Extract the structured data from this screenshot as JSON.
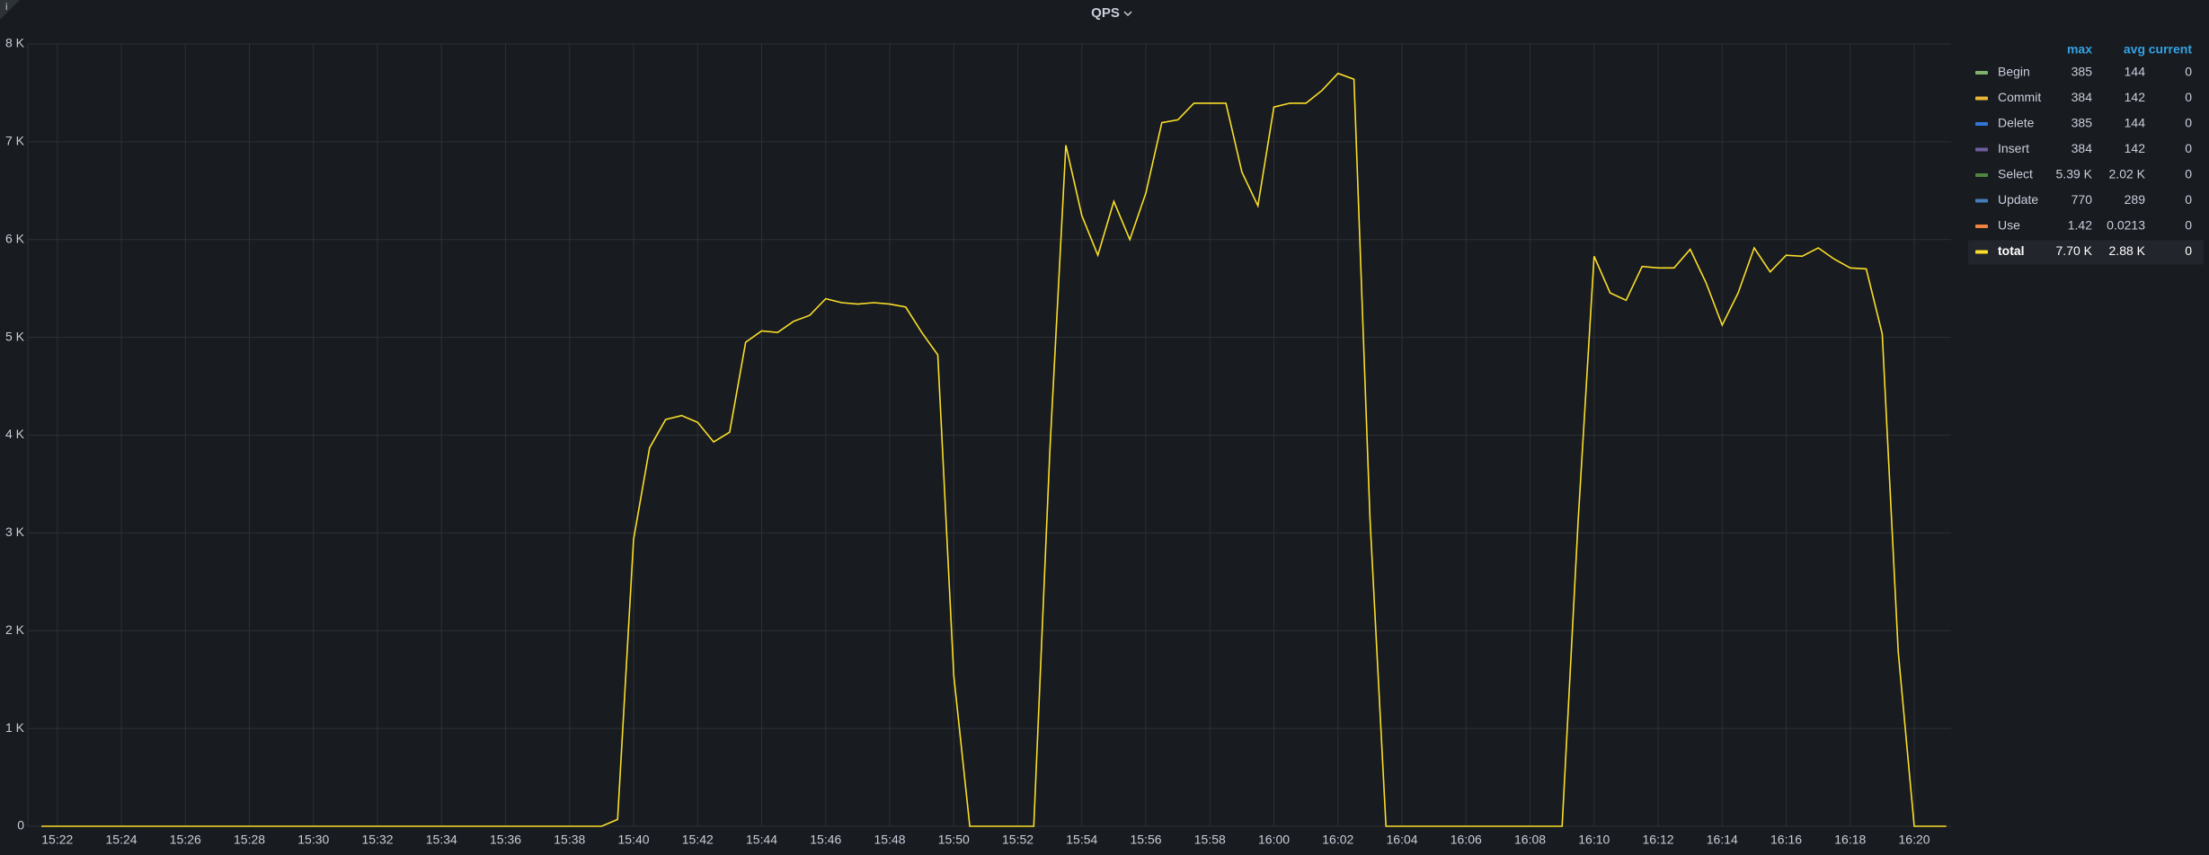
{
  "chart_data": {
    "type": "line",
    "title": "QPS",
    "xlim": [
      921.08,
      981.15
    ],
    "xticks": [
      {
        "value": 922,
        "label": "15:22"
      },
      {
        "value": 924,
        "label": "15:24"
      },
      {
        "value": 926,
        "label": "15:26"
      },
      {
        "value": 928,
        "label": "15:28"
      },
      {
        "value": 930,
        "label": "15:30"
      },
      {
        "value": 932,
        "label": "15:32"
      },
      {
        "value": 934,
        "label": "15:34"
      },
      {
        "value": 936,
        "label": "15:36"
      },
      {
        "value": 938,
        "label": "15:38"
      },
      {
        "value": 940,
        "label": "15:40"
      },
      {
        "value": 942,
        "label": "15:42"
      },
      {
        "value": 944,
        "label": "15:44"
      },
      {
        "value": 946,
        "label": "15:46"
      },
      {
        "value": 948,
        "label": "15:48"
      },
      {
        "value": 950,
        "label": "15:50"
      },
      {
        "value": 952,
        "label": "15:52"
      },
      {
        "value": 954,
        "label": "15:54"
      },
      {
        "value": 956,
        "label": "15:56"
      },
      {
        "value": 958,
        "label": "15:58"
      },
      {
        "value": 960,
        "label": "16:00"
      },
      {
        "value": 962,
        "label": "16:02"
      },
      {
        "value": 964,
        "label": "16:04"
      },
      {
        "value": 966,
        "label": "16:06"
      },
      {
        "value": 968,
        "label": "16:08"
      },
      {
        "value": 970,
        "label": "16:10"
      },
      {
        "value": 972,
        "label": "16:12"
      },
      {
        "value": 974,
        "label": "16:14"
      },
      {
        "value": 976,
        "label": "16:16"
      },
      {
        "value": 978,
        "label": "16:18"
      },
      {
        "value": 980,
        "label": "16:20"
      }
    ],
    "ylim": [
      0,
      8000
    ],
    "yticks": [
      0,
      {
        "value": 1000,
        "label": "1 K"
      },
      {
        "value": 2000,
        "label": "2 K"
      },
      {
        "value": 3000,
        "label": "3 K"
      },
      {
        "value": 4000,
        "label": "4 K"
      },
      {
        "value": 5000,
        "label": "5 K"
      },
      {
        "value": 6000,
        "label": "6 K"
      },
      {
        "value": 7000,
        "label": "7 K"
      },
      {
        "value": 8000,
        "label": "8 K"
      }
    ],
    "grid": true,
    "legend_columns": [
      "max",
      "avg",
      "current"
    ],
    "x": [
      921.5,
      939,
      939.5,
      940,
      940.5,
      941,
      941.5,
      942,
      942.5,
      943,
      943.5,
      944,
      944.5,
      945,
      945.5,
      946,
      946.5,
      947,
      947.5,
      948,
      948.5,
      949,
      949.5,
      950,
      950.5,
      952.5,
      953,
      953.5,
      954,
      954.5,
      955,
      955.5,
      956,
      956.5,
      957,
      957.5,
      958,
      958.5,
      959,
      959.5,
      960,
      960.5,
      961,
      961.5,
      962,
      962.5,
      963,
      963.5,
      969,
      969.5,
      970,
      970.5,
      971,
      971.5,
      972,
      972.5,
      973,
      973.5,
      974,
      974.5,
      975,
      975.5,
      976,
      976.5,
      977,
      977.5,
      978,
      978.5,
      979,
      979.5,
      980,
      981
    ],
    "series": [
      {
        "name": "Begin",
        "color": "#7eb26d",
        "stats": [
          "385",
          "144",
          "0"
        ]
      },
      {
        "name": "Commit",
        "color": "#eab839",
        "stats": [
          "384",
          "142",
          "0"
        ]
      },
      {
        "name": "Delete",
        "color": "#3274d9",
        "stats": [
          "385",
          "144",
          "0"
        ]
      },
      {
        "name": "Insert",
        "color": "#705da0",
        "stats": [
          "384",
          "142",
          "0"
        ]
      },
      {
        "name": "Select",
        "color": "#508642",
        "stats": [
          "5.39 K",
          "2.02 K",
          "0"
        ]
      },
      {
        "name": "Update",
        "color": "#447ebc",
        "stats": [
          "770",
          "289",
          "0"
        ]
      },
      {
        "name": "Use",
        "color": "#ef843c",
        "stats": [
          "1.42",
          "0.0213",
          "0"
        ]
      },
      {
        "name": "total",
        "color": "#fade2a",
        "stats": [
          "7.70 K",
          "2.88 K",
          "0"
        ],
        "values": [
          0,
          0,
          70,
          2935,
          3870,
          4160,
          4200,
          4130,
          3930,
          4030,
          4950,
          5065,
          5050,
          5165,
          5225,
          5395,
          5355,
          5340,
          5355,
          5340,
          5310,
          5050,
          4820,
          1540,
          0,
          0,
          3840,
          6965,
          6245,
          5840,
          6390,
          6000,
          6475,
          7195,
          7225,
          7395,
          7395,
          7395,
          6690,
          6345,
          7355,
          7395,
          7395,
          7525,
          7700,
          7640,
          3150,
          0,
          0,
          3120,
          5830,
          5455,
          5380,
          5725,
          5710,
          5710,
          5900,
          5555,
          5125,
          5455,
          5915,
          5670,
          5840,
          5830,
          5915,
          5800,
          5710,
          5700,
          5035,
          1785,
          0,
          0
        ]
      }
    ]
  }
}
